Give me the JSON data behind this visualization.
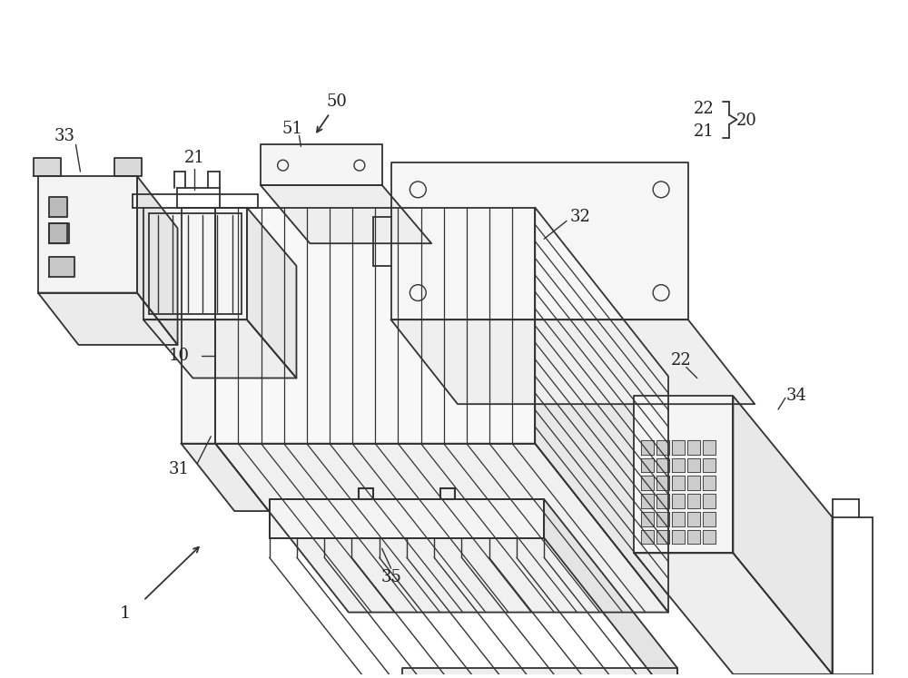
{
  "background_color": "#ffffff",
  "line_color": "#333333",
  "line_width": 1.3,
  "fig_width": 10.0,
  "fig_height": 7.47,
  "dpi": 100
}
